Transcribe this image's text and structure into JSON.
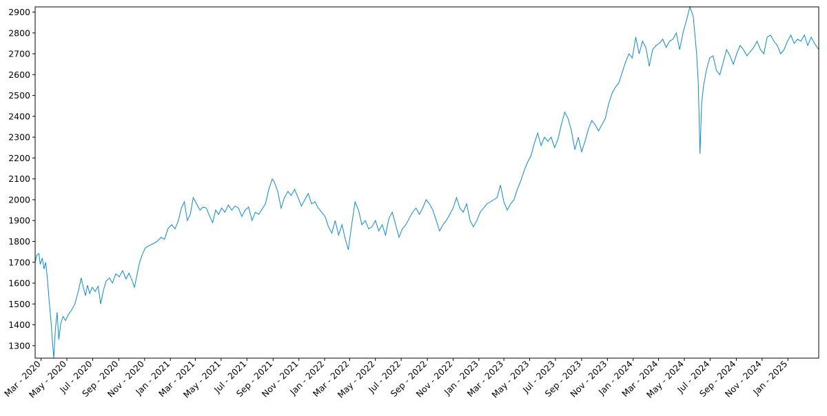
{
  "chart_data": {
    "type": "line",
    "title": "",
    "xlabel": "",
    "ylabel": "",
    "line_color": "#0a8ad6",
    "grid": false,
    "legend": "none",
    "x_range": [
      "2020-02-16",
      "2025-03-15"
    ],
    "ylim": [
      1240,
      2925
    ],
    "yticks": [
      1300,
      1400,
      1500,
      1600,
      1700,
      1800,
      1900,
      2000,
      2100,
      2200,
      2300,
      2400,
      2500,
      2600,
      2700,
      2800,
      2900
    ],
    "xticks": [
      {
        "date": "2020-03-01",
        "label": "Mar - 2020"
      },
      {
        "date": "2020-05-01",
        "label": "May - 2020"
      },
      {
        "date": "2020-07-01",
        "label": "Jul - 2020"
      },
      {
        "date": "2020-09-01",
        "label": "Sep - 2020"
      },
      {
        "date": "2020-11-01",
        "label": "Nov - 2020"
      },
      {
        "date": "2021-01-01",
        "label": "Jan - 2021"
      },
      {
        "date": "2021-03-01",
        "label": "Mar - 2021"
      },
      {
        "date": "2021-05-01",
        "label": "May - 2021"
      },
      {
        "date": "2021-07-01",
        "label": "Jul - 2021"
      },
      {
        "date": "2021-09-01",
        "label": "Sep - 2021"
      },
      {
        "date": "2021-11-01",
        "label": "Nov - 2021"
      },
      {
        "date": "2022-01-01",
        "label": "Jan - 2022"
      },
      {
        "date": "2022-03-01",
        "label": "Mar - 2022"
      },
      {
        "date": "2022-05-01",
        "label": "May - 2022"
      },
      {
        "date": "2022-07-01",
        "label": "Jul - 2022"
      },
      {
        "date": "2022-09-01",
        "label": "Sep - 2022"
      },
      {
        "date": "2022-11-01",
        "label": "Nov - 2022"
      },
      {
        "date": "2023-01-01",
        "label": "Jan - 2023"
      },
      {
        "date": "2023-03-01",
        "label": "Mar - 2023"
      },
      {
        "date": "2023-05-01",
        "label": "May - 2023"
      },
      {
        "date": "2023-07-01",
        "label": "Jul - 2023"
      },
      {
        "date": "2023-09-01",
        "label": "Sep - 2023"
      },
      {
        "date": "2023-11-01",
        "label": "Nov - 2023"
      },
      {
        "date": "2024-01-01",
        "label": "Jan - 2024"
      },
      {
        "date": "2024-03-01",
        "label": "Mar - 2024"
      },
      {
        "date": "2024-05-01",
        "label": "May - 2024"
      },
      {
        "date": "2024-07-01",
        "label": "Jul - 2024"
      },
      {
        "date": "2024-09-01",
        "label": "Sep - 2024"
      },
      {
        "date": "2024-11-01",
        "label": "Nov - 2024"
      },
      {
        "date": "2025-01-01",
        "label": "Jan - 2025"
      }
    ],
    "series": [
      {
        "points": [
          [
            "2020-02-16",
            1700
          ],
          [
            "2020-02-20",
            1735
          ],
          [
            "2020-02-25",
            1742
          ],
          [
            "2020-02-28",
            1690
          ],
          [
            "2020-03-04",
            1720
          ],
          [
            "2020-03-08",
            1668
          ],
          [
            "2020-03-12",
            1700
          ],
          [
            "2020-03-16",
            1620
          ],
          [
            "2020-03-20",
            1520
          ],
          [
            "2020-03-24",
            1430
          ],
          [
            "2020-03-28",
            1320
          ],
          [
            "2020-03-31",
            1240
          ],
          [
            "2020-04-04",
            1380
          ],
          [
            "2020-04-08",
            1460
          ],
          [
            "2020-04-12",
            1330
          ],
          [
            "2020-04-17",
            1410
          ],
          [
            "2020-04-22",
            1440
          ],
          [
            "2020-04-28",
            1420
          ],
          [
            "2020-05-05",
            1450
          ],
          [
            "2020-05-12",
            1470
          ],
          [
            "2020-05-20",
            1500
          ],
          [
            "2020-05-28",
            1560
          ],
          [
            "2020-06-04",
            1625
          ],
          [
            "2020-06-09",
            1580
          ],
          [
            "2020-06-14",
            1540
          ],
          [
            "2020-06-19",
            1590
          ],
          [
            "2020-06-24",
            1550
          ],
          [
            "2020-06-30",
            1580
          ],
          [
            "2020-07-07",
            1560
          ],
          [
            "2020-07-14",
            1585
          ],
          [
            "2020-07-20",
            1500
          ],
          [
            "2020-07-26",
            1560
          ],
          [
            "2020-08-02",
            1610
          ],
          [
            "2020-08-10",
            1625
          ],
          [
            "2020-08-17",
            1600
          ],
          [
            "2020-08-25",
            1645
          ],
          [
            "2020-09-02",
            1630
          ],
          [
            "2020-09-10",
            1660
          ],
          [
            "2020-09-18",
            1620
          ],
          [
            "2020-09-25",
            1648
          ],
          [
            "2020-10-02",
            1615
          ],
          [
            "2020-10-08",
            1580
          ],
          [
            "2020-10-14",
            1640
          ],
          [
            "2020-10-20",
            1700
          ],
          [
            "2020-10-27",
            1740
          ],
          [
            "2020-11-03",
            1770
          ],
          [
            "2020-11-12",
            1780
          ],
          [
            "2020-11-22",
            1790
          ],
          [
            "2020-12-01",
            1800
          ],
          [
            "2020-12-10",
            1820
          ],
          [
            "2020-12-18",
            1810
          ],
          [
            "2020-12-26",
            1860
          ],
          [
            "2021-01-04",
            1880
          ],
          [
            "2021-01-12",
            1860
          ],
          [
            "2021-01-20",
            1900
          ],
          [
            "2021-01-27",
            1960
          ],
          [
            "2021-02-03",
            1990
          ],
          [
            "2021-02-10",
            1900
          ],
          [
            "2021-02-17",
            1930
          ],
          [
            "2021-02-24",
            2010
          ],
          [
            "2021-03-04",
            1980
          ],
          [
            "2021-03-12",
            1950
          ],
          [
            "2021-03-19",
            1965
          ],
          [
            "2021-03-27",
            1960
          ],
          [
            "2021-04-04",
            1920
          ],
          [
            "2021-04-11",
            1890
          ],
          [
            "2021-04-18",
            1950
          ],
          [
            "2021-04-25",
            1930
          ],
          [
            "2021-05-02",
            1960
          ],
          [
            "2021-05-10",
            1940
          ],
          [
            "2021-05-18",
            1975
          ],
          [
            "2021-05-26",
            1950
          ],
          [
            "2021-06-03",
            1970
          ],
          [
            "2021-06-11",
            1960
          ],
          [
            "2021-06-19",
            1920
          ],
          [
            "2021-06-27",
            1950
          ],
          [
            "2021-07-05",
            1965
          ],
          [
            "2021-07-13",
            1900
          ],
          [
            "2021-07-21",
            1940
          ],
          [
            "2021-07-29",
            1930
          ],
          [
            "2021-08-06",
            1955
          ],
          [
            "2021-08-14",
            1980
          ],
          [
            "2021-08-22",
            2050
          ],
          [
            "2021-08-30",
            2100
          ],
          [
            "2021-09-04",
            2085
          ],
          [
            "2021-09-12",
            2040
          ],
          [
            "2021-09-20",
            1960
          ],
          [
            "2021-09-28",
            2010
          ],
          [
            "2021-10-06",
            2040
          ],
          [
            "2021-10-14",
            2020
          ],
          [
            "2021-10-22",
            2050
          ],
          [
            "2021-10-30",
            2010
          ],
          [
            "2021-11-07",
            1970
          ],
          [
            "2021-11-15",
            2000
          ],
          [
            "2021-11-23",
            2030
          ],
          [
            "2021-12-01",
            1980
          ],
          [
            "2021-12-09",
            1990
          ],
          [
            "2021-12-17",
            1960
          ],
          [
            "2021-12-25",
            1940
          ],
          [
            "2022-01-02",
            1920
          ],
          [
            "2022-01-10",
            1870
          ],
          [
            "2022-01-18",
            1840
          ],
          [
            "2022-01-26",
            1900
          ],
          [
            "2022-02-03",
            1830
          ],
          [
            "2022-02-11",
            1880
          ],
          [
            "2022-02-19",
            1810
          ],
          [
            "2022-02-26",
            1760
          ],
          [
            "2022-03-06",
            1880
          ],
          [
            "2022-03-14",
            1990
          ],
          [
            "2022-03-22",
            1950
          ],
          [
            "2022-03-30",
            1880
          ],
          [
            "2022-04-07",
            1900
          ],
          [
            "2022-04-15",
            1860
          ],
          [
            "2022-04-23",
            1870
          ],
          [
            "2022-05-01",
            1900
          ],
          [
            "2022-05-09",
            1850
          ],
          [
            "2022-05-17",
            1880
          ],
          [
            "2022-05-25",
            1830
          ],
          [
            "2022-06-02",
            1910
          ],
          [
            "2022-06-10",
            1940
          ],
          [
            "2022-06-18",
            1880
          ],
          [
            "2022-06-26",
            1820
          ],
          [
            "2022-07-04",
            1860
          ],
          [
            "2022-07-12",
            1880
          ],
          [
            "2022-07-20",
            1910
          ],
          [
            "2022-07-28",
            1940
          ],
          [
            "2022-08-05",
            1960
          ],
          [
            "2022-08-13",
            1930
          ],
          [
            "2022-08-21",
            1960
          ],
          [
            "2022-08-29",
            2000
          ],
          [
            "2022-09-06",
            1980
          ],
          [
            "2022-09-14",
            1950
          ],
          [
            "2022-09-22",
            1900
          ],
          [
            "2022-09-30",
            1850
          ],
          [
            "2022-10-08",
            1880
          ],
          [
            "2022-10-16",
            1900
          ],
          [
            "2022-10-24",
            1930
          ],
          [
            "2022-11-01",
            1960
          ],
          [
            "2022-11-09",
            2010
          ],
          [
            "2022-11-17",
            1960
          ],
          [
            "2022-11-25",
            1940
          ],
          [
            "2022-12-03",
            1980
          ],
          [
            "2022-12-11",
            1900
          ],
          [
            "2022-12-19",
            1870
          ],
          [
            "2022-12-27",
            1900
          ],
          [
            "2023-01-04",
            1940
          ],
          [
            "2023-01-12",
            1960
          ],
          [
            "2023-01-20",
            1980
          ],
          [
            "2023-01-28",
            1990
          ],
          [
            "2023-02-05",
            2000
          ],
          [
            "2023-02-13",
            2010
          ],
          [
            "2023-02-21",
            2070
          ],
          [
            "2023-03-01",
            1990
          ],
          [
            "2023-03-09",
            1950
          ],
          [
            "2023-03-17",
            1980
          ],
          [
            "2023-03-25",
            2000
          ],
          [
            "2023-04-02",
            2050
          ],
          [
            "2023-04-10",
            2090
          ],
          [
            "2023-04-18",
            2140
          ],
          [
            "2023-04-26",
            2180
          ],
          [
            "2023-05-04",
            2210
          ],
          [
            "2023-05-12",
            2270
          ],
          [
            "2023-05-20",
            2320
          ],
          [
            "2023-05-28",
            2260
          ],
          [
            "2023-06-05",
            2300
          ],
          [
            "2023-06-13",
            2280
          ],
          [
            "2023-06-21",
            2300
          ],
          [
            "2023-06-29",
            2250
          ],
          [
            "2023-07-07",
            2290
          ],
          [
            "2023-07-15",
            2360
          ],
          [
            "2023-07-23",
            2420
          ],
          [
            "2023-07-31",
            2390
          ],
          [
            "2023-08-08",
            2330
          ],
          [
            "2023-08-16",
            2240
          ],
          [
            "2023-08-24",
            2300
          ],
          [
            "2023-09-01",
            2230
          ],
          [
            "2023-09-09",
            2280
          ],
          [
            "2023-09-17",
            2340
          ],
          [
            "2023-09-25",
            2380
          ],
          [
            "2023-10-03",
            2360
          ],
          [
            "2023-10-11",
            2330
          ],
          [
            "2023-10-19",
            2360
          ],
          [
            "2023-10-27",
            2390
          ],
          [
            "2023-11-04",
            2460
          ],
          [
            "2023-11-12",
            2510
          ],
          [
            "2023-11-20",
            2540
          ],
          [
            "2023-11-28",
            2560
          ],
          [
            "2023-12-06",
            2610
          ],
          [
            "2023-12-14",
            2660
          ],
          [
            "2023-12-22",
            2700
          ],
          [
            "2023-12-30",
            2680
          ],
          [
            "2024-01-07",
            2780
          ],
          [
            "2024-01-15",
            2700
          ],
          [
            "2024-01-23",
            2760
          ],
          [
            "2024-01-31",
            2730
          ],
          [
            "2024-02-08",
            2640
          ],
          [
            "2024-02-16",
            2720
          ],
          [
            "2024-02-24",
            2740
          ],
          [
            "2024-03-03",
            2750
          ],
          [
            "2024-03-11",
            2770
          ],
          [
            "2024-03-19",
            2730
          ],
          [
            "2024-03-27",
            2760
          ],
          [
            "2024-04-04",
            2770
          ],
          [
            "2024-04-12",
            2800
          ],
          [
            "2024-04-20",
            2720
          ],
          [
            "2024-04-28",
            2800
          ],
          [
            "2024-05-06",
            2860
          ],
          [
            "2024-05-14",
            2925
          ],
          [
            "2024-05-22",
            2880
          ],
          [
            "2024-05-30",
            2700
          ],
          [
            "2024-06-03",
            2560
          ],
          [
            "2024-06-07",
            2220
          ],
          [
            "2024-06-11",
            2460
          ],
          [
            "2024-06-15",
            2540
          ],
          [
            "2024-06-22",
            2620
          ],
          [
            "2024-06-30",
            2680
          ],
          [
            "2024-07-08",
            2690
          ],
          [
            "2024-07-16",
            2620
          ],
          [
            "2024-07-24",
            2600
          ],
          [
            "2024-08-01",
            2660
          ],
          [
            "2024-08-09",
            2720
          ],
          [
            "2024-08-17",
            2690
          ],
          [
            "2024-08-25",
            2650
          ],
          [
            "2024-09-02",
            2700
          ],
          [
            "2024-09-10",
            2740
          ],
          [
            "2024-09-18",
            2720
          ],
          [
            "2024-09-26",
            2690
          ],
          [
            "2024-10-04",
            2710
          ],
          [
            "2024-10-12",
            2730
          ],
          [
            "2024-10-20",
            2760
          ],
          [
            "2024-10-28",
            2720
          ],
          [
            "2024-11-05",
            2700
          ],
          [
            "2024-11-13",
            2780
          ],
          [
            "2024-11-21",
            2790
          ],
          [
            "2024-11-29",
            2760
          ],
          [
            "2024-12-07",
            2740
          ],
          [
            "2024-12-15",
            2700
          ],
          [
            "2024-12-23",
            2720
          ],
          [
            "2024-12-31",
            2760
          ],
          [
            "2025-01-08",
            2790
          ],
          [
            "2025-01-16",
            2750
          ],
          [
            "2025-01-24",
            2770
          ],
          [
            "2025-02-01",
            2760
          ],
          [
            "2025-02-09",
            2790
          ],
          [
            "2025-02-17",
            2740
          ],
          [
            "2025-02-25",
            2780
          ],
          [
            "2025-03-05",
            2750
          ],
          [
            "2025-03-15",
            2720
          ]
        ]
      }
    ]
  }
}
